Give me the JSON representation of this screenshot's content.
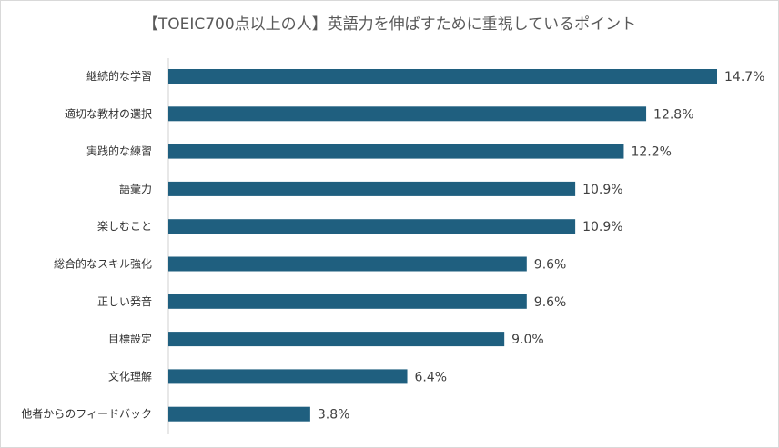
{
  "chart_data": {
    "type": "bar",
    "orientation": "horizontal",
    "title": "【TOEIC700点以上の人】英語力を伸ばすために重視しているポイント",
    "categories": [
      "継続的な学習",
      "適切な教材の選択",
      "実践的な練習",
      "語彙力",
      "楽しむこと",
      "総合的なスキル強化",
      "正しい発音",
      "目標設定",
      "文化理解",
      "他者からのフィードバック"
    ],
    "values": [
      14.7,
      12.8,
      12.2,
      10.9,
      10.9,
      9.6,
      9.6,
      9.0,
      6.4,
      3.8
    ],
    "value_labels": [
      "14.7%",
      "12.8%",
      "12.2%",
      "10.9%",
      "10.9%",
      "9.6%",
      "9.6%",
      "9.0%",
      "6.4%",
      "3.8%"
    ],
    "xlim": [
      0,
      16
    ],
    "grid": false,
    "legend": "none",
    "bar_color": "#1f5f7f"
  }
}
